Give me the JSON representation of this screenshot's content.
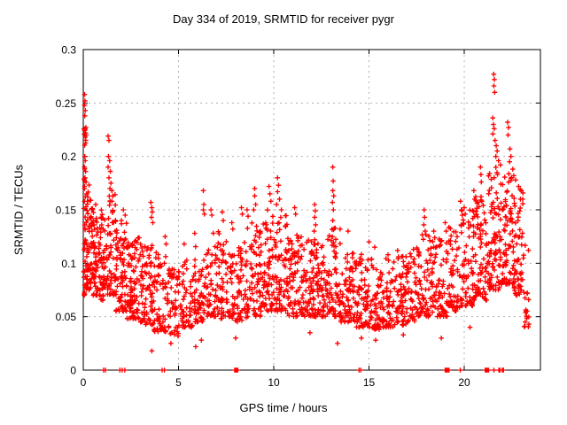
{
  "page": {
    "background": "#ffffff"
  },
  "chart_data": {
    "type": "scatter",
    "title": "Day 334 of 2019, SRMTID for receiver pygr",
    "xlabel": "GPS time / hours",
    "ylabel": "SRMTID / TECUs",
    "xlim": [
      0,
      24
    ],
    "ylim": [
      0,
      0.3
    ],
    "xtick_values": [
      0,
      5,
      10,
      15,
      20
    ],
    "xtick_labels": [
      "0",
      "5",
      "10",
      "15",
      "20"
    ],
    "ytick_values": [
      0,
      0.05,
      0.1,
      0.15,
      0.2,
      0.25,
      0.3
    ],
    "ytick_labels": [
      "0",
      "0.05",
      "0.1",
      "0.15",
      "0.2",
      "0.25",
      "0.3"
    ],
    "grid": true,
    "legend": null,
    "marker": "plus",
    "marker_color": "#ff0000",
    "axis_color": "#000000",
    "grid_color": "#b0b0b0",
    "seed": 20191334,
    "skew": 1.6,
    "density_segments": [
      [
        0.02,
        0.15,
        40,
        0.07,
        0.23
      ],
      [
        0.15,
        0.45,
        55,
        0.075,
        0.175
      ],
      [
        0.45,
        0.8,
        55,
        0.07,
        0.16
      ],
      [
        0.8,
        1.2,
        55,
        0.065,
        0.15
      ],
      [
        1.2,
        1.7,
        60,
        0.07,
        0.165
      ],
      [
        1.7,
        2.3,
        75,
        0.055,
        0.14
      ],
      [
        2.3,
        3.0,
        85,
        0.048,
        0.125
      ],
      [
        3.0,
        3.7,
        75,
        0.042,
        0.12
      ],
      [
        3.7,
        4.4,
        60,
        0.035,
        0.11
      ],
      [
        4.4,
        5.1,
        55,
        0.032,
        0.095
      ],
      [
        5.1,
        5.8,
        55,
        0.04,
        0.105
      ],
      [
        5.8,
        6.5,
        60,
        0.045,
        0.12
      ],
      [
        6.5,
        7.2,
        60,
        0.05,
        0.13
      ],
      [
        7.2,
        7.9,
        60,
        0.048,
        0.125
      ],
      [
        7.9,
        8.6,
        60,
        0.045,
        0.12
      ],
      [
        8.6,
        9.3,
        65,
        0.05,
        0.14
      ],
      [
        9.3,
        10.0,
        70,
        0.055,
        0.15
      ],
      [
        10.0,
        10.7,
        70,
        0.055,
        0.15
      ],
      [
        10.7,
        11.4,
        65,
        0.05,
        0.13
      ],
      [
        11.4,
        12.1,
        70,
        0.05,
        0.125
      ],
      [
        12.1,
        12.8,
        70,
        0.05,
        0.13
      ],
      [
        12.8,
        13.5,
        70,
        0.05,
        0.135
      ],
      [
        13.5,
        14.2,
        65,
        0.045,
        0.115
      ],
      [
        14.2,
        14.9,
        65,
        0.04,
        0.11
      ],
      [
        14.9,
        15.6,
        60,
        0.038,
        0.105
      ],
      [
        15.6,
        16.3,
        60,
        0.04,
        0.105
      ],
      [
        16.3,
        17.0,
        65,
        0.042,
        0.11
      ],
      [
        17.0,
        17.7,
        60,
        0.045,
        0.115
      ],
      [
        17.7,
        18.4,
        60,
        0.05,
        0.13
      ],
      [
        18.4,
        19.1,
        60,
        0.05,
        0.125
      ],
      [
        19.1,
        19.8,
        60,
        0.055,
        0.135
      ],
      [
        19.8,
        20.5,
        70,
        0.06,
        0.15
      ],
      [
        20.5,
        21.2,
        80,
        0.065,
        0.165
      ],
      [
        21.2,
        21.9,
        85,
        0.075,
        0.19
      ],
      [
        21.9,
        22.6,
        85,
        0.08,
        0.19
      ],
      [
        22.6,
        23.1,
        55,
        0.07,
        0.17
      ],
      [
        23.1,
        23.4,
        20,
        0.04,
        0.12
      ]
    ],
    "feature_points": [
      [
        0.07,
        0.258
      ],
      [
        0.09,
        0.252
      ],
      [
        0.07,
        0.248
      ],
      [
        0.1,
        0.243
      ],
      [
        0.08,
        0.238
      ],
      [
        0.12,
        0.222
      ],
      [
        0.15,
        0.22
      ],
      [
        0.1,
        0.218
      ],
      [
        0.13,
        0.215
      ],
      [
        0.08,
        0.2
      ],
      [
        0.1,
        0.196
      ],
      [
        0.06,
        0.19
      ],
      [
        0.12,
        0.186
      ],
      [
        0.09,
        0.18
      ],
      [
        0.14,
        0.176
      ],
      [
        0.07,
        0.17
      ],
      [
        0.18,
        0.165
      ],
      [
        0.1,
        0.162
      ],
      [
        0.22,
        0.158
      ],
      [
        1.3,
        0.219
      ],
      [
        1.35,
        0.215
      ],
      [
        1.32,
        0.2
      ],
      [
        1.38,
        0.196
      ],
      [
        1.3,
        0.19
      ],
      [
        1.42,
        0.186
      ],
      [
        1.35,
        0.18
      ],
      [
        1.45,
        0.175
      ],
      [
        1.4,
        0.17
      ],
      [
        1.5,
        0.168
      ],
      [
        1.55,
        0.163
      ],
      [
        1.5,
        0.158
      ],
      [
        2.0,
        0.14
      ],
      [
        2.1,
        0.15
      ],
      [
        2.2,
        0.145
      ],
      [
        3.55,
        0.157
      ],
      [
        3.6,
        0.152
      ],
      [
        3.62,
        0.148
      ],
      [
        3.58,
        0.143
      ],
      [
        3.65,
        0.138
      ],
      [
        4.3,
        0.125
      ],
      [
        4.35,
        0.118
      ],
      [
        5.3,
        0.118
      ],
      [
        5.85,
        0.128
      ],
      [
        6.3,
        0.168
      ],
      [
        6.33,
        0.155
      ],
      [
        6.3,
        0.15
      ],
      [
        6.36,
        0.146
      ],
      [
        6.7,
        0.15
      ],
      [
        6.75,
        0.145
      ],
      [
        7.3,
        0.148
      ],
      [
        7.35,
        0.14
      ],
      [
        7.8,
        0.138
      ],
      [
        7.85,
        0.132
      ],
      [
        8.3,
        0.152
      ],
      [
        8.35,
        0.146
      ],
      [
        8.6,
        0.15
      ],
      [
        8.65,
        0.144
      ],
      [
        8.95,
        0.15
      ],
      [
        9.0,
        0.17
      ],
      [
        9.0,
        0.163
      ],
      [
        9.05,
        0.155
      ],
      [
        9.75,
        0.172
      ],
      [
        9.8,
        0.165
      ],
      [
        9.85,
        0.158
      ],
      [
        10.15,
        0.155
      ],
      [
        10.2,
        0.18
      ],
      [
        10.2,
        0.167
      ],
      [
        10.25,
        0.173
      ],
      [
        10.3,
        0.16
      ],
      [
        10.4,
        0.15
      ],
      [
        11.1,
        0.152
      ],
      [
        11.15,
        0.146
      ],
      [
        12.12,
        0.13
      ],
      [
        12.15,
        0.155
      ],
      [
        12.15,
        0.143
      ],
      [
        12.18,
        0.149
      ],
      [
        12.2,
        0.136
      ],
      [
        13.08,
        0.157
      ],
      [
        13.1,
        0.19
      ],
      [
        13.1,
        0.168
      ],
      [
        13.1,
        0.14
      ],
      [
        13.12,
        0.177
      ],
      [
        13.13,
        0.15
      ],
      [
        13.15,
        0.163
      ],
      [
        13.9,
        0.13
      ],
      [
        15.0,
        0.12
      ],
      [
        15.3,
        0.115
      ],
      [
        16.0,
        0.108
      ],
      [
        16.5,
        0.112
      ],
      [
        16.55,
        0.106
      ],
      [
        17.88,
        0.136
      ],
      [
        17.9,
        0.15
      ],
      [
        17.92,
        0.143
      ],
      [
        17.95,
        0.13
      ],
      [
        18.4,
        0.13
      ],
      [
        18.45,
        0.124
      ],
      [
        19.0,
        0.138
      ],
      [
        19.05,
        0.13
      ],
      [
        19.8,
        0.158
      ],
      [
        19.85,
        0.15
      ],
      [
        19.9,
        0.145
      ],
      [
        20.0,
        0.152
      ],
      [
        20.05,
        0.146
      ],
      [
        20.5,
        0.168
      ],
      [
        20.55,
        0.16
      ],
      [
        20.85,
        0.19
      ],
      [
        20.88,
        0.183
      ],
      [
        20.9,
        0.176
      ],
      [
        21.5,
        0.236
      ],
      [
        21.5,
        0.221
      ],
      [
        21.53,
        0.23
      ],
      [
        21.55,
        0.277
      ],
      [
        21.56,
        0.266
      ],
      [
        21.57,
        0.226
      ],
      [
        21.58,
        0.272
      ],
      [
        21.6,
        0.26
      ],
      [
        21.62,
        0.215
      ],
      [
        21.66,
        0.2
      ],
      [
        21.68,
        0.21
      ],
      [
        21.73,
        0.205
      ],
      [
        21.8,
        0.196
      ],
      [
        21.9,
        0.192
      ],
      [
        22.28,
        0.232
      ],
      [
        22.3,
        0.22
      ],
      [
        22.33,
        0.227
      ],
      [
        22.38,
        0.195
      ],
      [
        22.4,
        0.207
      ],
      [
        22.45,
        0.2
      ],
      [
        22.55,
        0.188
      ],
      [
        22.6,
        0.182
      ],
      [
        22.7,
        0.178
      ],
      [
        22.85,
        0.172
      ],
      [
        22.95,
        0.16
      ],
      [
        23.0,
        0.168
      ],
      [
        3.6,
        0.018
      ],
      [
        4.6,
        0.025
      ],
      [
        5.9,
        0.022
      ],
      [
        6.2,
        0.028
      ],
      [
        8.0,
        0.03
      ],
      [
        11.9,
        0.035
      ],
      [
        13.35,
        0.025
      ],
      [
        14.6,
        0.03
      ],
      [
        15.35,
        0.028
      ],
      [
        16.8,
        0.033
      ],
      [
        18.8,
        0.03
      ],
      [
        20.3,
        0.04
      ],
      [
        23.2,
        0.045
      ],
      [
        23.3,
        0.055
      ]
    ],
    "zero_time_marks": [
      1.06,
      1.16,
      1.92,
      2.04,
      2.18,
      4.14,
      4.26,
      7.95,
      7.99,
      8.03,
      8.07,
      8.11,
      14.48,
      14.57,
      19.0,
      19.05,
      19.1,
      19.15,
      19.2,
      19.79,
      21.1,
      21.16,
      21.22,
      21.28,
      21.56,
      21.82,
      21.88,
      22.0,
      22.06
    ]
  }
}
